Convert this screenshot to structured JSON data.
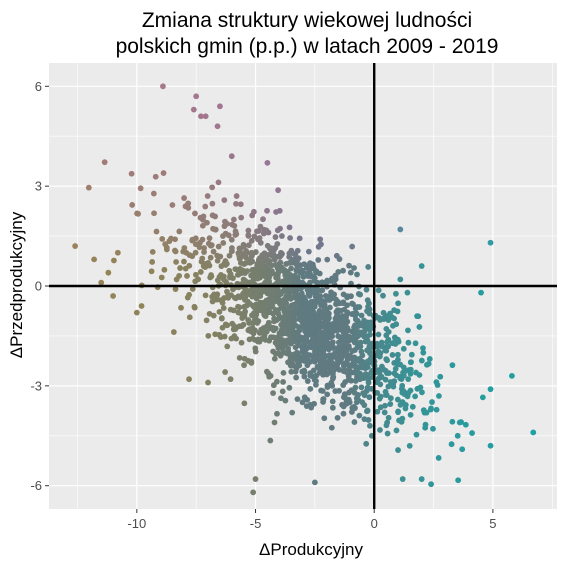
{
  "chart_data": {
    "type": "scatter",
    "title_line1": "Zmiana struktury wiekowej ludności",
    "title_line2": "polskich gmin (p.p.) w latach 2009 - 2019",
    "xlabel": "ΔProdukcyjny",
    "ylabel": "ΔPrzedprodukcyjny",
    "xlim": [
      -13.7,
      7.7
    ],
    "ylim": [
      -6.7,
      6.7
    ],
    "x_ticks": [
      -10,
      -5,
      0,
      5
    ],
    "x_tick_labels": [
      "-10",
      "-5",
      "0",
      "5"
    ],
    "y_ticks": [
      -6,
      -3,
      0,
      3,
      6
    ],
    "y_tick_labels": [
      "-6",
      "-3",
      "0",
      "3",
      "6"
    ],
    "grid": true,
    "legend": "none",
    "reference_lines": {
      "x": 0,
      "y": 0
    },
    "colors": {
      "panel_background": "#ebebeb",
      "grid": "#ffffff",
      "reference_line": "#000000",
      "point_negative_x": "#b58a3a",
      "point_high_y": "#c46cc0",
      "point_positive_x": "#00b3b3",
      "point_center": "#5f7a80"
    },
    "points": [
      {
        "x": -8.9,
        "y": 6.0
      },
      {
        "x": -7.5,
        "y": 5.7
      },
      {
        "x": -7.3,
        "y": 5.1
      },
      {
        "x": -7.1,
        "y": 5.1
      },
      {
        "x": -6.5,
        "y": 5.4
      },
      {
        "x": -6.6,
        "y": 4.8
      },
      {
        "x": -7.6,
        "y": 5.3
      },
      {
        "x": -12.6,
        "y": 1.2
      },
      {
        "x": -11.8,
        "y": 0.8
      },
      {
        "x": -11.2,
        "y": 0.4
      },
      {
        "x": -10.8,
        "y": 1.0
      },
      {
        "x": -11.5,
        "y": 0.1
      },
      {
        "x": -10.0,
        "y": -0.8
      },
      {
        "x": -9.8,
        "y": -0.6
      },
      {
        "x": -11.0,
        "y": -0.3
      },
      {
        "x": 1.1,
        "y": 1.7
      },
      {
        "x": 4.9,
        "y": 1.3
      },
      {
        "x": 2.0,
        "y": 0.6
      },
      {
        "x": 4.5,
        "y": -0.2
      },
      {
        "x": 5.8,
        "y": -2.7
      },
      {
        "x": 6.7,
        "y": -4.4
      },
      {
        "x": 4.9,
        "y": -4.8
      },
      {
        "x": 4.9,
        "y": -3.1
      },
      {
        "x": -5.0,
        "y": -5.8
      },
      {
        "x": -5.1,
        "y": -6.2
      },
      {
        "x": -2.5,
        "y": -5.9
      },
      {
        "x": 1.2,
        "y": -5.8
      },
      {
        "x": 2.0,
        "y": -5.8
      },
      {
        "x": -0.1,
        "y": -4.5
      },
      {
        "x": -7.8,
        "y": -2.8
      },
      {
        "x": -7.0,
        "y": -2.9
      },
      {
        "x": -4.2,
        "y": -4.1
      },
      {
        "x": 1.1,
        "y": 0.2
      },
      {
        "x": 1.4,
        "y": -0.2
      },
      {
        "x": -6.0,
        "y": 3.9
      },
      {
        "x": -4.5,
        "y": 3.7
      }
    ]
  }
}
